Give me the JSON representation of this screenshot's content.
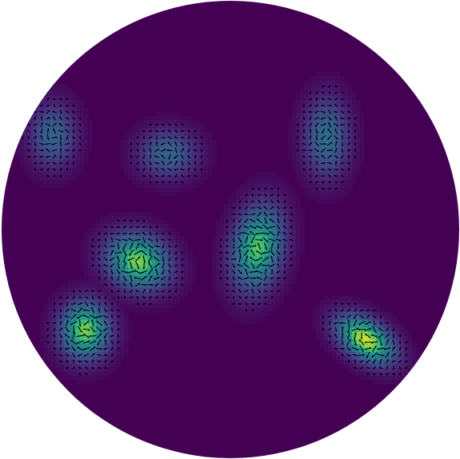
{
  "figure": {
    "kind": "vector field over a circular domain",
    "colormap": "viridis",
    "background": "#ffffff",
    "disk_color": "#440154",
    "arrow_color": "#000000",
    "grid": false,
    "axes_visible": false
  },
  "chart_data": {
    "type": "heatmap",
    "title": "",
    "xlabel": "",
    "ylabel": "",
    "colormap": "viridis",
    "field_overlay": "quiver",
    "blobs": [
      {
        "name": "",
        "cx": 0.115,
        "cy": 0.295,
        "rx": 0.062,
        "ry": 0.085,
        "angle": 0.0,
        "peak": 0.4
      },
      {
        "name": "",
        "cx": 0.365,
        "cy": 0.335,
        "rx": 0.078,
        "ry": 0.065,
        "angle": 0.0,
        "peak": 0.4
      },
      {
        "name": "",
        "cx": 0.71,
        "cy": 0.3,
        "rx": 0.06,
        "ry": 0.105,
        "angle": 0.0,
        "peak": 0.45
      },
      {
        "name": "",
        "cx": 0.3,
        "cy": 0.57,
        "rx": 0.085,
        "ry": 0.07,
        "angle": 0.45,
        "peak": 0.85
      },
      {
        "name": "",
        "cx": 0.56,
        "cy": 0.54,
        "rx": 0.065,
        "ry": 0.11,
        "angle": 0.2,
        "peak": 0.8
      },
      {
        "name": "",
        "cx": 0.185,
        "cy": 0.72,
        "rx": 0.065,
        "ry": 0.075,
        "angle": 0.0,
        "peak": 0.85
      },
      {
        "name": "",
        "cx": 0.795,
        "cy": 0.74,
        "rx": 0.085,
        "ry": 0.05,
        "angle": 0.6,
        "peak": 0.95
      }
    ]
  }
}
